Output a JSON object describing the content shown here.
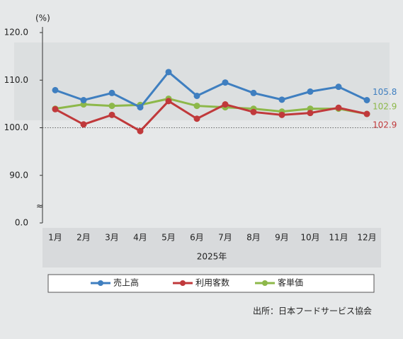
{
  "chart_data": {
    "type": "line",
    "y_unit": "(%)",
    "categories": [
      "1月",
      "2月",
      "3月",
      "4月",
      "5月",
      "6月",
      "7月",
      "8月",
      "9月",
      "10月",
      "11月",
      "12月"
    ],
    "x_title": "2025年",
    "series": [
      {
        "name": "売上高",
        "color": "#3f7fc0",
        "values": [
          107.9,
          105.8,
          107.3,
          104.3,
          111.7,
          106.7,
          109.5,
          107.3,
          105.9,
          107.6,
          108.6,
          105.8
        ],
        "value_labels": [
          null,
          null,
          null,
          null,
          null,
          null,
          null,
          null,
          null,
          null,
          null,
          "105.8"
        ]
      },
      {
        "name": "利用客数",
        "color": "#c0393b",
        "values": [
          103.9,
          100.7,
          102.7,
          99.3,
          105.6,
          101.9,
          104.9,
          103.3,
          102.7,
          103.1,
          104.2,
          102.9
        ],
        "value_labels": [
          null,
          null,
          null,
          null,
          null,
          null,
          null,
          null,
          null,
          null,
          null,
          "102.9"
        ]
      },
      {
        "name": "客単価",
        "color": "#8db84a",
        "values": [
          104.0,
          104.9,
          104.6,
          104.8,
          106.1,
          104.6,
          104.3,
          104.0,
          103.4,
          104.0,
          104.0,
          102.9
        ],
        "value_labels": [
          null,
          null,
          null,
          null,
          null,
          null,
          null,
          null,
          null,
          null,
          null,
          "102.9"
        ]
      }
    ],
    "ylim": [
      0,
      120
    ],
    "axis_break": [
      0,
      90
    ],
    "yticks": [
      {
        "value": 0,
        "label": "0.0"
      },
      {
        "value": 90,
        "label": "90.0"
      },
      {
        "value": 100,
        "label": "100.0"
      },
      {
        "value": 110,
        "label": "110.0"
      },
      {
        "value": 120,
        "label": "120.0"
      }
    ],
    "reference_line": 100,
    "grid": false,
    "legend": "bottom",
    "source": "出所：日本フードサービス協会"
  }
}
